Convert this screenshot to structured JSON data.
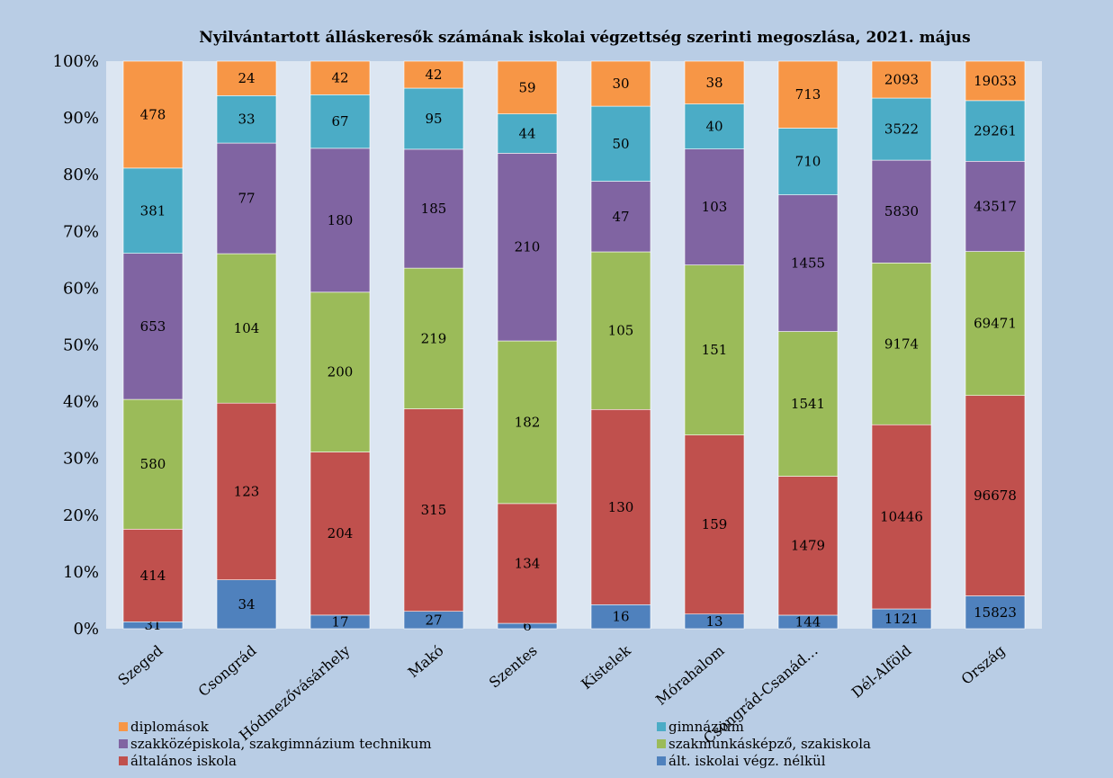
{
  "chart_data": {
    "type": "bar",
    "stacked": "percent",
    "title": "Nyilvántartott álláskeresők számának iskolai végzettség szerinti megoszlása, 2021. május",
    "categories": [
      "Szeged",
      "Csongrád",
      "Hódmezővásárhely",
      "Makó",
      "Szentes",
      "Kistelek",
      "Mórahalom",
      "Csongrád-Csanád…",
      "Dél-Alföld",
      "Ország"
    ],
    "y_ticks": [
      "0%",
      "10%",
      "20%",
      "30%",
      "40%",
      "50%",
      "60%",
      "70%",
      "80%",
      "90%",
      "100%"
    ],
    "ylim": [
      0,
      100
    ],
    "legend_position": "bottom",
    "series": [
      {
        "name": "ált. iskolai végz. nélkül",
        "color": "#4f81bd",
        "values": [
          31,
          34,
          17,
          27,
          6,
          16,
          13,
          144,
          1121,
          15823
        ]
      },
      {
        "name": "általános iskola",
        "color": "#c0504d",
        "values": [
          414,
          123,
          204,
          315,
          134,
          130,
          159,
          1479,
          10446,
          96678
        ]
      },
      {
        "name": "szakmunkásképző, szakiskola",
        "color": "#9bbb59",
        "values": [
          580,
          104,
          200,
          219,
          182,
          105,
          151,
          1541,
          9174,
          69471
        ]
      },
      {
        "name": "szakközépiskola, szakgimnázium technikum",
        "color": "#8064a2",
        "values": [
          653,
          77,
          180,
          185,
          210,
          47,
          103,
          1455,
          5830,
          43517
        ]
      },
      {
        "name": "gimnázium",
        "color": "#4bacc6",
        "values": [
          381,
          33,
          67,
          95,
          44,
          50,
          40,
          710,
          3522,
          29261
        ]
      },
      {
        "name": "diplomások",
        "color": "#f79646",
        "values": [
          478,
          24,
          42,
          42,
          59,
          30,
          38,
          713,
          2093,
          19033
        ]
      }
    ],
    "legend_order": [
      5,
      4,
      3,
      2,
      1,
      0
    ],
    "colors": {
      "background": "#b9cde5",
      "plot_area": "#dce6f2",
      "text": "#000000"
    }
  }
}
